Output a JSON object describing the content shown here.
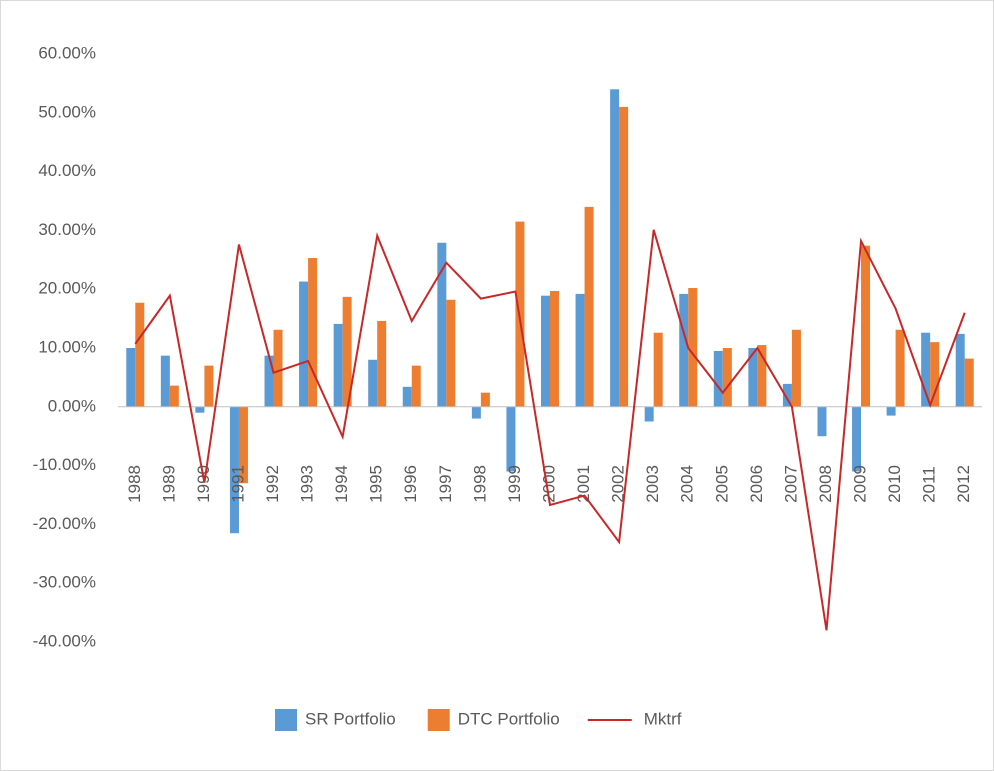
{
  "chart_data": {
    "type": "bar-line",
    "categories": [
      "1988",
      "1989",
      "1990",
      "1991",
      "1992",
      "1993",
      "1994",
      "1995",
      "1996",
      "1997",
      "1998",
      "1999",
      "2000",
      "2001",
      "2002",
      "2003",
      "2004",
      "2005",
      "2006",
      "2007",
      "2008",
      "2009",
      "2010",
      "2011",
      "2012"
    ],
    "series": [
      {
        "name": "SR Portfolio",
        "color": "#5b9bd5",
        "kind": "bar",
        "values": [
          10.0,
          8.7,
          -1.0,
          -21.5,
          8.7,
          21.3,
          14.1,
          8.0,
          3.4,
          27.9,
          -2.0,
          -11.0,
          18.9,
          19.2,
          54.0,
          -2.5,
          19.2,
          9.5,
          10.0,
          3.9,
          -5.0,
          -11.0,
          -1.5,
          12.6,
          12.4
        ]
      },
      {
        "name": "DTC Portfolio",
        "color": "#ed7d31",
        "kind": "bar",
        "values": [
          17.7,
          3.6,
          7.0,
          -13.0,
          13.1,
          25.3,
          18.7,
          14.6,
          7.0,
          18.2,
          2.4,
          31.5,
          19.7,
          34.0,
          51.0,
          12.6,
          20.2,
          10.0,
          10.5,
          13.1,
          0,
          27.4,
          13.1,
          11.0,
          8.2
        ]
      },
      {
        "name": "Mktrf",
        "color": "#c82828",
        "kind": "line",
        "values": [
          10.7,
          18.9,
          -12.9,
          27.6,
          5.8,
          7.8,
          -5.1,
          29.1,
          14.6,
          24.5,
          18.4,
          19.6,
          -16.7,
          -15.1,
          -23.0,
          30.1,
          10.0,
          2.4,
          10.0,
          0.0,
          -38.0,
          28.2,
          16.7,
          0.3,
          16.0
        ]
      }
    ],
    "ylim": [
      -40,
      60
    ],
    "yticks": [
      {
        "value": 60,
        "label": "60.00%"
      },
      {
        "value": 50,
        "label": "50.00%"
      },
      {
        "value": 40,
        "label": "40.00%"
      },
      {
        "value": 30,
        "label": "30.00%"
      },
      {
        "value": 20,
        "label": "20.00%"
      },
      {
        "value": 10,
        "label": "10.00%"
      },
      {
        "value": 0,
        "label": "0.00%"
      },
      {
        "value": -10,
        "label": "-10.00%"
      },
      {
        "value": -20,
        "label": "-20.00%"
      },
      {
        "value": -30,
        "label": "-30.00%"
      },
      {
        "value": -40,
        "label": "-40.00%"
      }
    ],
    "grid": false,
    "legend": "bottom"
  }
}
